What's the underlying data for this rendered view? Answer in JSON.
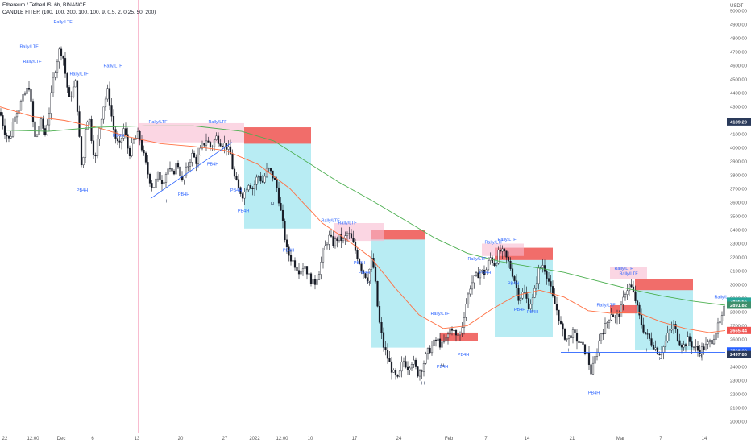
{
  "header": {
    "symbol_line": "Ethereum / TetherUS, 6h, BINANCE",
    "indicator_line": "CANDLE FITER (100, 100, 200, 100, 100, 9, 0.5, 2, 0.25, 50, 200)"
  },
  "chart_data": {
    "type": "candlestick",
    "title": "Ethereum / TetherUS, 6h, BINANCE",
    "ylabel": "USDT",
    "ylim": [
      1920,
      5080
    ],
    "y_ticks": [
      5000,
      4900,
      4800,
      4700,
      4600,
      4500,
      4400,
      4300,
      4200,
      4100,
      4000,
      3900,
      3800,
      3700,
      3600,
      3500,
      3400,
      3300,
      3200,
      3100,
      3000,
      2900,
      2800,
      2700,
      2600,
      2500,
      2400,
      2300,
      2200,
      2100,
      2000
    ],
    "x_labels": [
      "22",
      "12:00",
      "Dec",
      "6",
      "13",
      "20",
      "27",
      "2022",
      "12:00",
      "10",
      "17",
      "24",
      "Feb",
      "7",
      "14",
      "21",
      "Mar",
      "7",
      "14"
    ],
    "price_labels": [
      {
        "value": "4189.20",
        "color": "#2a3a5a"
      },
      {
        "value": "2856.65",
        "color": "#26a69a"
      },
      {
        "value": "2891.82",
        "color": "#3d8f6b"
      },
      {
        "value": "2665.44",
        "color": "#ef5350"
      },
      {
        "value": "2508.00",
        "color": "#2962ff"
      },
      {
        "value": "2497.86",
        "color": "#2a3a5a"
      }
    ],
    "close_path": [
      [
        0,
        4260
      ],
      [
        6,
        4120
      ],
      [
        12,
        4050
      ],
      [
        18,
        4250
      ],
      [
        24,
        4300
      ],
      [
        30,
        4380
      ],
      [
        36,
        4450
      ],
      [
        40,
        4230
      ],
      [
        44,
        4050
      ],
      [
        50,
        4200
      ],
      [
        56,
        4100
      ],
      [
        62,
        4300
      ],
      [
        66,
        4500
      ],
      [
        70,
        4620
      ],
      [
        74,
        4720
      ],
      [
        78,
        4680
      ],
      [
        82,
        4500
      ],
      [
        86,
        4350
      ],
      [
        90,
        4420
      ],
      [
        94,
        4480
      ],
      [
        98,
        4100
      ],
      [
        102,
        3800
      ],
      [
        106,
        4150
      ],
      [
        110,
        4250
      ],
      [
        114,
        4050
      ],
      [
        118,
        3900
      ],
      [
        122,
        4100
      ],
      [
        128,
        4300
      ],
      [
        134,
        4420
      ],
      [
        138,
        4250
      ],
      [
        142,
        4100
      ],
      [
        148,
        4000
      ],
      [
        154,
        4150
      ],
      [
        160,
        3950
      ],
      [
        166,
        4050
      ],
      [
        172,
        4100
      ],
      [
        178,
        3950
      ],
      [
        184,
        3800
      ],
      [
        190,
        3700
      ],
      [
        196,
        3800
      ],
      [
        202,
        3750
      ],
      [
        208,
        3850
      ],
      [
        214,
        3800
      ],
      [
        220,
        3900
      ],
      [
        226,
        3750
      ],
      [
        232,
        3850
      ],
      [
        238,
        3950
      ],
      [
        244,
        3900
      ],
      [
        250,
        4000
      ],
      [
        256,
        4060
      ],
      [
        262,
        4000
      ],
      [
        268,
        4080
      ],
      [
        274,
        4040
      ],
      [
        280,
        4020
      ],
      [
        286,
        3950
      ],
      [
        290,
        3800
      ],
      [
        296,
        3700
      ],
      [
        302,
        3650
      ],
      [
        308,
        3750
      ],
      [
        314,
        3700
      ],
      [
        320,
        3800
      ],
      [
        326,
        3750
      ],
      [
        332,
        3850
      ],
      [
        338,
        3800
      ],
      [
        344,
        3700
      ],
      [
        348,
        3550
      ],
      [
        352,
        3400
      ],
      [
        356,
        3250
      ],
      [
        360,
        3200
      ],
      [
        366,
        3150
      ],
      [
        372,
        3100
      ],
      [
        378,
        3150
      ],
      [
        384,
        3050
      ],
      [
        390,
        3000
      ],
      [
        396,
        3100
      ],
      [
        402,
        3250
      ],
      [
        408,
        3350
      ],
      [
        414,
        3300
      ],
      [
        420,
        3350
      ],
      [
        426,
        3320
      ],
      [
        432,
        3380
      ],
      [
        438,
        3300
      ],
      [
        444,
        3200
      ],
      [
        450,
        3100
      ],
      [
        456,
        3050
      ],
      [
        462,
        3200
      ],
      [
        466,
        3000
      ],
      [
        470,
        2750
      ],
      [
        476,
        2550
      ],
      [
        482,
        2450
      ],
      [
        488,
        2350
      ],
      [
        494,
        2300
      ],
      [
        500,
        2450
      ],
      [
        506,
        2400
      ],
      [
        512,
        2450
      ],
      [
        518,
        2350
      ],
      [
        524,
        2400
      ],
      [
        530,
        2500
      ],
      [
        536,
        2550
      ],
      [
        542,
        2600
      ],
      [
        548,
        2550
      ],
      [
        554,
        2600
      ],
      [
        560,
        2700
      ],
      [
        566,
        2620
      ],
      [
        572,
        2650
      ],
      [
        578,
        2850
      ],
      [
        584,
        3000
      ],
      [
        590,
        3050
      ],
      [
        596,
        3100
      ],
      [
        602,
        3080
      ],
      [
        608,
        3200
      ],
      [
        614,
        3150
      ],
      [
        620,
        3250
      ],
      [
        626,
        3220
      ],
      [
        632,
        3150
      ],
      [
        638,
        3050
      ],
      [
        644,
        2900
      ],
      [
        650,
        2950
      ],
      [
        656,
        2850
      ],
      [
        662,
        2900
      ],
      [
        668,
        3100
      ],
      [
        674,
        3150
      ],
      [
        680,
        3050
      ],
      [
        686,
        2900
      ],
      [
        692,
        2800
      ],
      [
        698,
        2650
      ],
      [
        704,
        2600
      ],
      [
        710,
        2650
      ],
      [
        716,
        2600
      ],
      [
        722,
        2550
      ],
      [
        728,
        2500
      ],
      [
        734,
        2350
      ],
      [
        740,
        2500
      ],
      [
        746,
        2650
      ],
      [
        752,
        2700
      ],
      [
        758,
        2800
      ],
      [
        764,
        2750
      ],
      [
        770,
        2800
      ],
      [
        776,
        2950
      ],
      [
        782,
        3000
      ],
      [
        788,
        2900
      ],
      [
        794,
        2750
      ],
      [
        800,
        2650
      ],
      [
        806,
        2600
      ],
      [
        812,
        2550
      ],
      [
        818,
        2500
      ],
      [
        824,
        2550
      ],
      [
        830,
        2650
      ],
      [
        836,
        2700
      ],
      [
        842,
        2600
      ],
      [
        848,
        2550
      ],
      [
        854,
        2600
      ],
      [
        860,
        2550
      ],
      [
        866,
        2520
      ],
      [
        872,
        2530
      ],
      [
        878,
        2560
      ],
      [
        884,
        2600
      ],
      [
        890,
        2680
      ],
      [
        896,
        2750
      ],
      [
        900,
        2856
      ]
    ],
    "ema_orange": [
      [
        0,
        4300
      ],
      [
        40,
        4230
      ],
      [
        80,
        4200
      ],
      [
        120,
        4150
      ],
      [
        160,
        4080
      ],
      [
        200,
        4030
      ],
      [
        240,
        4010
      ],
      [
        280,
        3980
      ],
      [
        320,
        3880
      ],
      [
        360,
        3700
      ],
      [
        400,
        3450
      ],
      [
        430,
        3330
      ],
      [
        460,
        3200
      ],
      [
        490,
        2980
      ],
      [
        520,
        2780
      ],
      [
        550,
        2680
      ],
      [
        580,
        2700
      ],
      [
        610,
        2820
      ],
      [
        640,
        2920
      ],
      [
        670,
        2960
      ],
      [
        700,
        2910
      ],
      [
        730,
        2810
      ],
      [
        760,
        2790
      ],
      [
        790,
        2800
      ],
      [
        820,
        2730
      ],
      [
        850,
        2680
      ],
      [
        880,
        2650
      ],
      [
        900,
        2665
      ]
    ],
    "ema_green": [
      [
        0,
        4130
      ],
      [
        60,
        4120
      ],
      [
        120,
        4150
      ],
      [
        180,
        4160
      ],
      [
        240,
        4160
      ],
      [
        300,
        4120
      ],
      [
        340,
        4050
      ],
      [
        380,
        3900
      ],
      [
        420,
        3750
      ],
      [
        460,
        3620
      ],
      [
        500,
        3480
      ],
      [
        540,
        3340
      ],
      [
        580,
        3230
      ],
      [
        620,
        3170
      ],
      [
        660,
        3130
      ],
      [
        700,
        3090
      ],
      [
        740,
        3030
      ],
      [
        780,
        2970
      ],
      [
        820,
        2920
      ],
      [
        860,
        2880
      ],
      [
        900,
        2850
      ]
    ],
    "zones": [
      {
        "kind": "supply",
        "x": [
          303,
          386
        ],
        "y": [
          4030,
          4150
        ]
      },
      {
        "kind": "target",
        "x": [
          303,
          386
        ],
        "y": [
          3410,
          4030
        ]
      },
      {
        "kind": "supply",
        "x": [
          461,
          527
        ],
        "y": [
          3330,
          3400
        ]
      },
      {
        "kind": "target",
        "x": [
          461,
          527
        ],
        "y": [
          2540,
          3330
        ]
      },
      {
        "kind": "supply",
        "x": [
          614,
          686
        ],
        "y": [
          3180,
          3270
        ]
      },
      {
        "kind": "target",
        "x": [
          614,
          686
        ],
        "y": [
          2620,
          3180
        ]
      },
      {
        "kind": "supply",
        "x": [
          788,
          860
        ],
        "y": [
          2960,
          3040
        ]
      },
      {
        "kind": "target",
        "x": [
          788,
          860
        ],
        "y": [
          2520,
          2960
        ]
      },
      {
        "kind": "demand",
        "x": [
          546,
          593
        ],
        "y": [
          2585,
          2650
        ]
      },
      {
        "kind": "demand",
        "x": [
          757,
          790
        ],
        "y": [
          2790,
          2850
        ]
      },
      {
        "kind": "pink",
        "x": [
          172,
          303
        ],
        "y": [
          4040,
          4180
        ]
      },
      {
        "kind": "pink",
        "x": [
          415,
          477
        ],
        "y": [
          3320,
          3450
        ]
      },
      {
        "kind": "pink",
        "x": [
          598,
          650
        ],
        "y": [
          3210,
          3300
        ]
      },
      {
        "kind": "pink",
        "x": [
          757,
          803
        ],
        "y": [
          3040,
          3130
        ]
      }
    ],
    "labels": [
      {
        "text": "Rally/LTF",
        "x": 78,
        "y": 4910,
        "color": "#2962ff"
      },
      {
        "text": "Rally/LTF",
        "x": 36,
        "y": 4730,
        "color": "#2962ff"
      },
      {
        "text": "Rally/LTF",
        "x": 40,
        "y": 4620,
        "color": "#2962ff"
      },
      {
        "text": "Rally/LTF",
        "x": 98,
        "y": 4530,
        "color": "#2962ff"
      },
      {
        "text": "Rally/LTF",
        "x": 140,
        "y": 4590,
        "color": "#2962ff"
      },
      {
        "text": "Rally/LTF",
        "x": 196,
        "y": 4180,
        "color": "#2962ff"
      },
      {
        "text": "Rally/LTF",
        "x": 270,
        "y": 4180,
        "color": "#2962ff"
      },
      {
        "text": "Rally/LTF",
        "x": 410,
        "y": 3460,
        "color": "#2962ff"
      },
      {
        "text": "Rally/LTF",
        "x": 431,
        "y": 3440,
        "color": "#2962ff"
      },
      {
        "text": "Rally/LTF",
        "x": 546,
        "y": 2780,
        "color": "#2962ff"
      },
      {
        "text": "Rally/LTF",
        "x": 592,
        "y": 3180,
        "color": "#2962ff"
      },
      {
        "text": "Rally/LTF",
        "x": 613,
        "y": 3300,
        "color": "#2962ff"
      },
      {
        "text": "Rally/LTF",
        "x": 629,
        "y": 3320,
        "color": "#2962ff"
      },
      {
        "text": "Rally/LTF",
        "x": 752,
        "y": 2840,
        "color": "#2962ff"
      },
      {
        "text": "Rally/LTF",
        "x": 774,
        "y": 3110,
        "color": "#2962ff"
      },
      {
        "text": "Rally/LTF",
        "x": 780,
        "y": 3070,
        "color": "#2962ff"
      },
      {
        "text": "Rally/LTF",
        "x": 898,
        "y": 2900,
        "color": "#2962ff"
      },
      {
        "text": "PB4H",
        "x": 102,
        "y": 3680,
        "color": "#2962ff"
      },
      {
        "text": "PB4H",
        "x": 147,
        "y": 4080,
        "color": "#2962ff"
      },
      {
        "text": "PB4H",
        "x": 228,
        "y": 3650,
        "color": "#2962ff"
      },
      {
        "text": "PB4H",
        "x": 264,
        "y": 3870,
        "color": "#2962ff"
      },
      {
        "text": "PB4H",
        "x": 293,
        "y": 3680,
        "color": "#2962ff"
      },
      {
        "text": "PB4H",
        "x": 302,
        "y": 3530,
        "color": "#2962ff"
      },
      {
        "text": "PB4H",
        "x": 358,
        "y": 3240,
        "color": "#2962ff"
      },
      {
        "text": "PB4H",
        "x": 446,
        "y": 3150,
        "color": "#2962ff"
      },
      {
        "text": "PB4H",
        "x": 452,
        "y": 3080,
        "color": "#2962ff"
      },
      {
        "text": "PB4H",
        "x": 549,
        "y": 2390,
        "color": "#2962ff"
      },
      {
        "text": "PB4H",
        "x": 575,
        "y": 2480,
        "color": "#2962ff"
      },
      {
        "text": "PB4H",
        "x": 645,
        "y": 2810,
        "color": "#2962ff"
      },
      {
        "text": "PB4H",
        "x": 661,
        "y": 2790,
        "color": "#2962ff"
      },
      {
        "text": "PB4H",
        "x": 737,
        "y": 2200,
        "color": "#2962ff"
      },
      {
        "text": "PB4H",
        "x": 602,
        "y": 3080,
        "color": "#2962ff"
      },
      {
        "text": "PB4H",
        "x": 637,
        "y": 3000,
        "color": "#2962ff"
      },
      {
        "text": "H",
        "x": 205,
        "y": 3600,
        "color": "#2a3a5a"
      },
      {
        "text": "H",
        "x": 338,
        "y": 3580,
        "color": "#2a3a5a"
      },
      {
        "text": "H",
        "x": 458,
        "y": 3010,
        "color": "#2a3a5a"
      },
      {
        "text": "H",
        "x": 525,
        "y": 2270,
        "color": "#2a3a5a"
      },
      {
        "text": "H",
        "x": 707,
        "y": 2510,
        "color": "#2a3a5a"
      },
      {
        "text": "H",
        "x": 804,
        "y": 2510,
        "color": "#2a3a5a"
      },
      {
        "text": "H",
        "x": 820,
        "y": 2450,
        "color": "#2a3a5a"
      },
      {
        "text": "H",
        "x": 869,
        "y": 2470,
        "color": "#2a3a5a"
      },
      {
        "text": "H",
        "x": 549,
        "y": 2400,
        "color": "#2a3a5a"
      }
    ],
    "trendline": [
      [
        187,
        3630
      ],
      [
        288,
        4040
      ]
    ],
    "support_line": {
      "value": 2505,
      "x": [
        696,
        900
      ]
    },
    "crosshair_x": 172,
    "xlabel": ""
  }
}
